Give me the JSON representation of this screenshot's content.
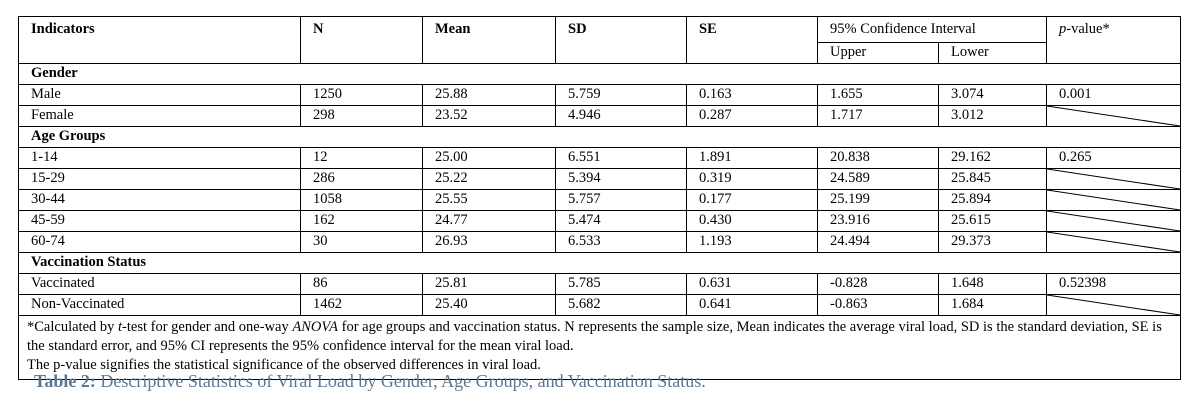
{
  "table": {
    "headers": {
      "indicators": "Indicators",
      "n": "N",
      "mean": "Mean",
      "sd": "SD",
      "se": "SE",
      "ci": "95% Confidence Interval",
      "upper": "Upper",
      "lower": "Lower",
      "p_value_prefix": "p",
      "p_value_suffix": "-value*"
    },
    "groups": [
      {
        "title": "Gender",
        "p_value": "0.001",
        "rows": [
          {
            "label": "Male",
            "n": "1250",
            "mean": "25.88",
            "sd": "5.759",
            "se": "0.163",
            "upper": "1.655",
            "lower": "3.074"
          },
          {
            "label": "Female",
            "n": "298",
            "mean": "23.52",
            "sd": "4.946",
            "se": "0.287",
            "upper": "1.717",
            "lower": "3.012"
          }
        ]
      },
      {
        "title": "Age Groups",
        "p_value": "0.265",
        "rows": [
          {
            "label": "1-14",
            "n": "12",
            "mean": "25.00",
            "sd": "6.551",
            "se": "1.891",
            "upper": "20.838",
            "lower": "29.162"
          },
          {
            "label": "15-29",
            "n": "286",
            "mean": "25.22",
            "sd": "5.394",
            "se": "0.319",
            "upper": "24.589",
            "lower": "25.845"
          },
          {
            "label": "30-44",
            "n": "1058",
            "mean": "25.55",
            "sd": "5.757",
            "se": "0.177",
            "upper": "25.199",
            "lower": "25.894"
          },
          {
            "label": "45-59",
            "n": "162",
            "mean": "24.77",
            "sd": "5.474",
            "se": "0.430",
            "upper": "23.916",
            "lower": "25.615"
          },
          {
            "label": "60-74",
            "n": "30",
            "mean": "26.93",
            "sd": "6.533",
            "se": "1.193",
            "upper": "24.494",
            "lower": "29.373"
          }
        ]
      },
      {
        "title": "Vaccination Status",
        "p_value": "0.52398",
        "rows": [
          {
            "label": "Vaccinated",
            "n": "86",
            "mean": "25.81",
            "sd": "5.785",
            "se": "0.631",
            "upper": "-0.828",
            "lower": "1.648"
          },
          {
            "label": "Non-Vaccinated",
            "n": "1462",
            "mean": "25.40",
            "sd": "5.682",
            "se": "0.641",
            "upper": "-0.863",
            "lower": "1.684"
          }
        ]
      }
    ],
    "footnote": {
      "part1": "*Calculated by ",
      "t_italic": "t",
      "part2": "-test for gender and one-way ",
      "anova_italic": "ANOVA",
      "part3": " for age groups and vaccination status. N represents the sample size, Mean indicates the average viral load, SD is the standard deviation, SE is the standard error, and 95% CI represents the 95% confidence interval for the mean viral load.",
      "part4": "The p-value signifies the statistical significance of the observed differences in viral load."
    }
  },
  "caption": {
    "label": "Table 2:",
    "text": " Descriptive Statistics of Viral Load by Gender, Age Groups, and Vaccination Status."
  }
}
